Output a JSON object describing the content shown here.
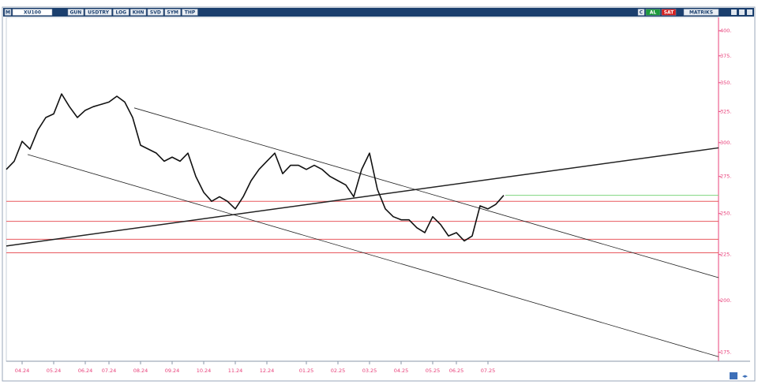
{
  "toolbar": {
    "menu": "M",
    "symbol": "XU100",
    "buttons": [
      "GUN",
      "USDTRY",
      "LOG",
      "KHN",
      "SVD",
      "SYM",
      "THP"
    ],
    "actions": [
      "C",
      "AL",
      "SAT"
    ],
    "brand": "MATRIKS"
  },
  "chart_data": {
    "type": "line",
    "categories": [
      null,
      null,
      "04.24",
      null,
      null,
      null,
      "05.24",
      null,
      null,
      null,
      "06.24",
      null,
      null,
      "07.24",
      null,
      null,
      null,
      "08.24",
      null,
      null,
      null,
      "09.24",
      null,
      null,
      null,
      "10.24",
      null,
      null,
      null,
      "11.24",
      null,
      null,
      null,
      "12.24",
      null,
      null,
      null,
      null,
      "01.25",
      null,
      null,
      null,
      "02.25",
      null,
      null,
      null,
      "03.25",
      null,
      null,
      null,
      "04.25",
      null,
      null,
      null,
      "05.25",
      null,
      null,
      "06.25",
      null,
      null,
      null,
      "07.25",
      null,
      null
    ],
    "values": [
      280,
      286,
      301,
      295,
      310,
      320,
      323,
      340,
      329,
      320,
      326,
      329,
      331,
      333,
      338,
      333,
      320,
      298,
      295,
      292,
      286,
      289,
      286,
      292,
      275,
      264,
      258,
      261,
      258,
      253,
      261,
      272,
      280,
      286,
      292,
      277,
      283,
      283,
      280,
      283,
      280,
      275,
      272,
      269,
      261,
      280,
      292,
      266,
      253,
      248,
      246,
      246,
      241,
      238,
      248,
      243,
      236,
      238,
      233,
      236,
      255,
      253,
      256,
      262
    ],
    "color": "#111111",
    "xlim": [
      0,
      90.2
    ],
    "ylim": [
      171,
      414
    ],
    "log_scale": true,
    "yticks": [
      {
        "value": 175,
        "label": "175."
      },
      {
        "value": 200,
        "label": "200."
      },
      {
        "value": 225,
        "label": "225."
      },
      {
        "value": 250,
        "label": "250."
      },
      {
        "value": 275,
        "label": "275."
      },
      {
        "value": 300,
        "label": "300."
      },
      {
        "value": 325,
        "label": "325."
      },
      {
        "value": 350,
        "label": "350."
      },
      {
        "value": 375,
        "label": "375."
      },
      {
        "value": 400,
        "label": "400."
      }
    ],
    "levels": {
      "values": [
        258,
        245,
        234,
        226
      ],
      "color": "#e8595f"
    },
    "last_line_color": "#7fd67f",
    "trendlines": [
      {
        "x": [
          0,
          90.2
        ],
        "values": [
          230,
          296
        ]
      },
      {
        "x": [
          16.2,
          90.2
        ],
        "values": [
          328,
          212
        ]
      },
      {
        "x": [
          2.7,
          90.2
        ],
        "values": [
          291,
          173
        ]
      }
    ],
    "trendline_color": "#222222"
  }
}
